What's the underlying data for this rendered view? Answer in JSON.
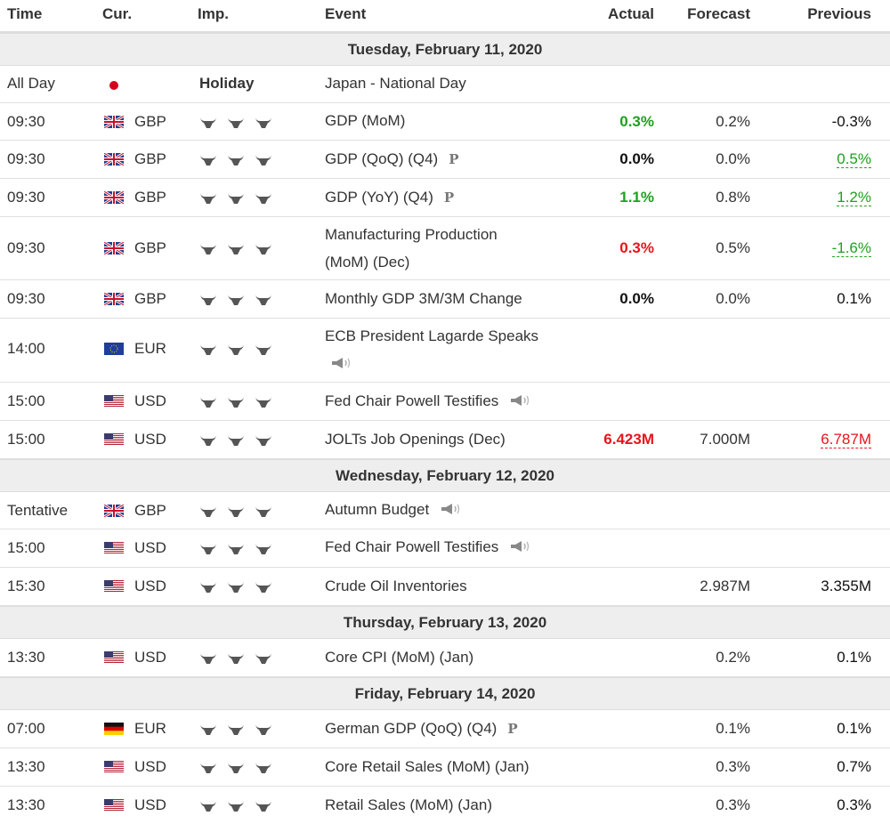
{
  "columns": {
    "time": "Time",
    "cur": "Cur.",
    "imp": "Imp.",
    "event": "Event",
    "actual": "Actual",
    "forecast": "Forecast",
    "previous": "Previous"
  },
  "days": [
    {
      "label": "Tuesday, February 11, 2020"
    },
    {
      "label": "Wednesday, February 12, 2020"
    },
    {
      "label": "Thursday, February 13, 2020"
    },
    {
      "label": "Friday, February 14, 2020"
    }
  ],
  "rows": [
    {
      "time": "All Day",
      "flag": "jp-flag-icon",
      "cur": "",
      "imp": "Holiday",
      "event": "Japan - National Day",
      "actual": "",
      "forecast": "",
      "previous": ""
    },
    {
      "time": "09:30",
      "flag": "uk-flag-icon",
      "cur": "GBP",
      "event": "GDP (MoM)",
      "actual": "0.3%",
      "forecast": "0.2%",
      "previous": "-0.3%"
    },
    {
      "time": "09:30",
      "flag": "uk-flag-icon",
      "cur": "GBP",
      "event": "GDP (QoQ) (Q4)",
      "marker": "P",
      "actual": "0.0%",
      "forecast": "0.0%",
      "previous": "0.5%"
    },
    {
      "time": "09:30",
      "flag": "uk-flag-icon",
      "cur": "GBP",
      "event": "GDP (YoY) (Q4)",
      "marker": "P",
      "actual": "1.1%",
      "forecast": "0.8%",
      "previous": "1.2%"
    },
    {
      "time": "09:30",
      "flag": "uk-flag-icon",
      "cur": "GBP",
      "event": "Manufacturing Production",
      "event2": "(MoM) (Dec)",
      "actual": "0.3%",
      "forecast": "0.5%",
      "previous": "-1.6%"
    },
    {
      "time": "09:30",
      "flag": "uk-flag-icon",
      "cur": "GBP",
      "event": "Monthly GDP 3M/3M Change",
      "actual": "0.0%",
      "forecast": "0.0%",
      "previous": "0.1%"
    },
    {
      "time": "14:00",
      "flag": "eu-flag-icon",
      "cur": "EUR",
      "event": "ECB President Lagarde Speaks",
      "actual": "",
      "forecast": "",
      "previous": ""
    },
    {
      "time": "15:00",
      "flag": "us-flag-icon",
      "cur": "USD",
      "event": "Fed Chair Powell Testifies",
      "actual": "",
      "forecast": "",
      "previous": ""
    },
    {
      "time": "15:00",
      "flag": "us-flag-icon",
      "cur": "USD",
      "event": "JOLTs Job Openings (Dec)",
      "actual": "6.423M",
      "forecast": "7.000M",
      "previous": "6.787M"
    },
    {
      "time": "Tentative",
      "flag": "uk-flag-icon",
      "cur": "GBP",
      "event": "Autumn Budget",
      "actual": "",
      "forecast": "",
      "previous": ""
    },
    {
      "time": "15:00",
      "flag": "us-flag-icon",
      "cur": "USD",
      "event": "Fed Chair Powell Testifies",
      "actual": "",
      "forecast": "",
      "previous": ""
    },
    {
      "time": "15:30",
      "flag": "us-flag-icon",
      "cur": "USD",
      "event": "Crude Oil Inventories",
      "actual": "",
      "forecast": "2.987M",
      "previous": "3.355M"
    },
    {
      "time": "13:30",
      "flag": "us-flag-icon",
      "cur": "USD",
      "event": "Core CPI (MoM) (Jan)",
      "actual": "",
      "forecast": "0.2%",
      "previous": "0.1%"
    },
    {
      "time": "07:00",
      "flag": "de-flag-icon",
      "cur": "EUR",
      "event": "German GDP (QoQ) (Q4)",
      "marker": "P",
      "actual": "",
      "forecast": "0.1%",
      "previous": "0.1%"
    },
    {
      "time": "13:30",
      "flag": "us-flag-icon",
      "cur": "USD",
      "event": "Core Retail Sales (MoM) (Jan)",
      "actual": "",
      "forecast": "0.3%",
      "previous": "0.7%"
    },
    {
      "time": "13:30",
      "flag": "us-flag-icon",
      "cur": "USD",
      "event": "Retail Sales (MoM) (Jan)",
      "actual": "",
      "forecast": "0.3%",
      "previous": "0.3%"
    }
  ],
  "colors": {
    "green": "#1fa01f",
    "red": "#e8141a",
    "day_bg": "#eeeeef"
  }
}
